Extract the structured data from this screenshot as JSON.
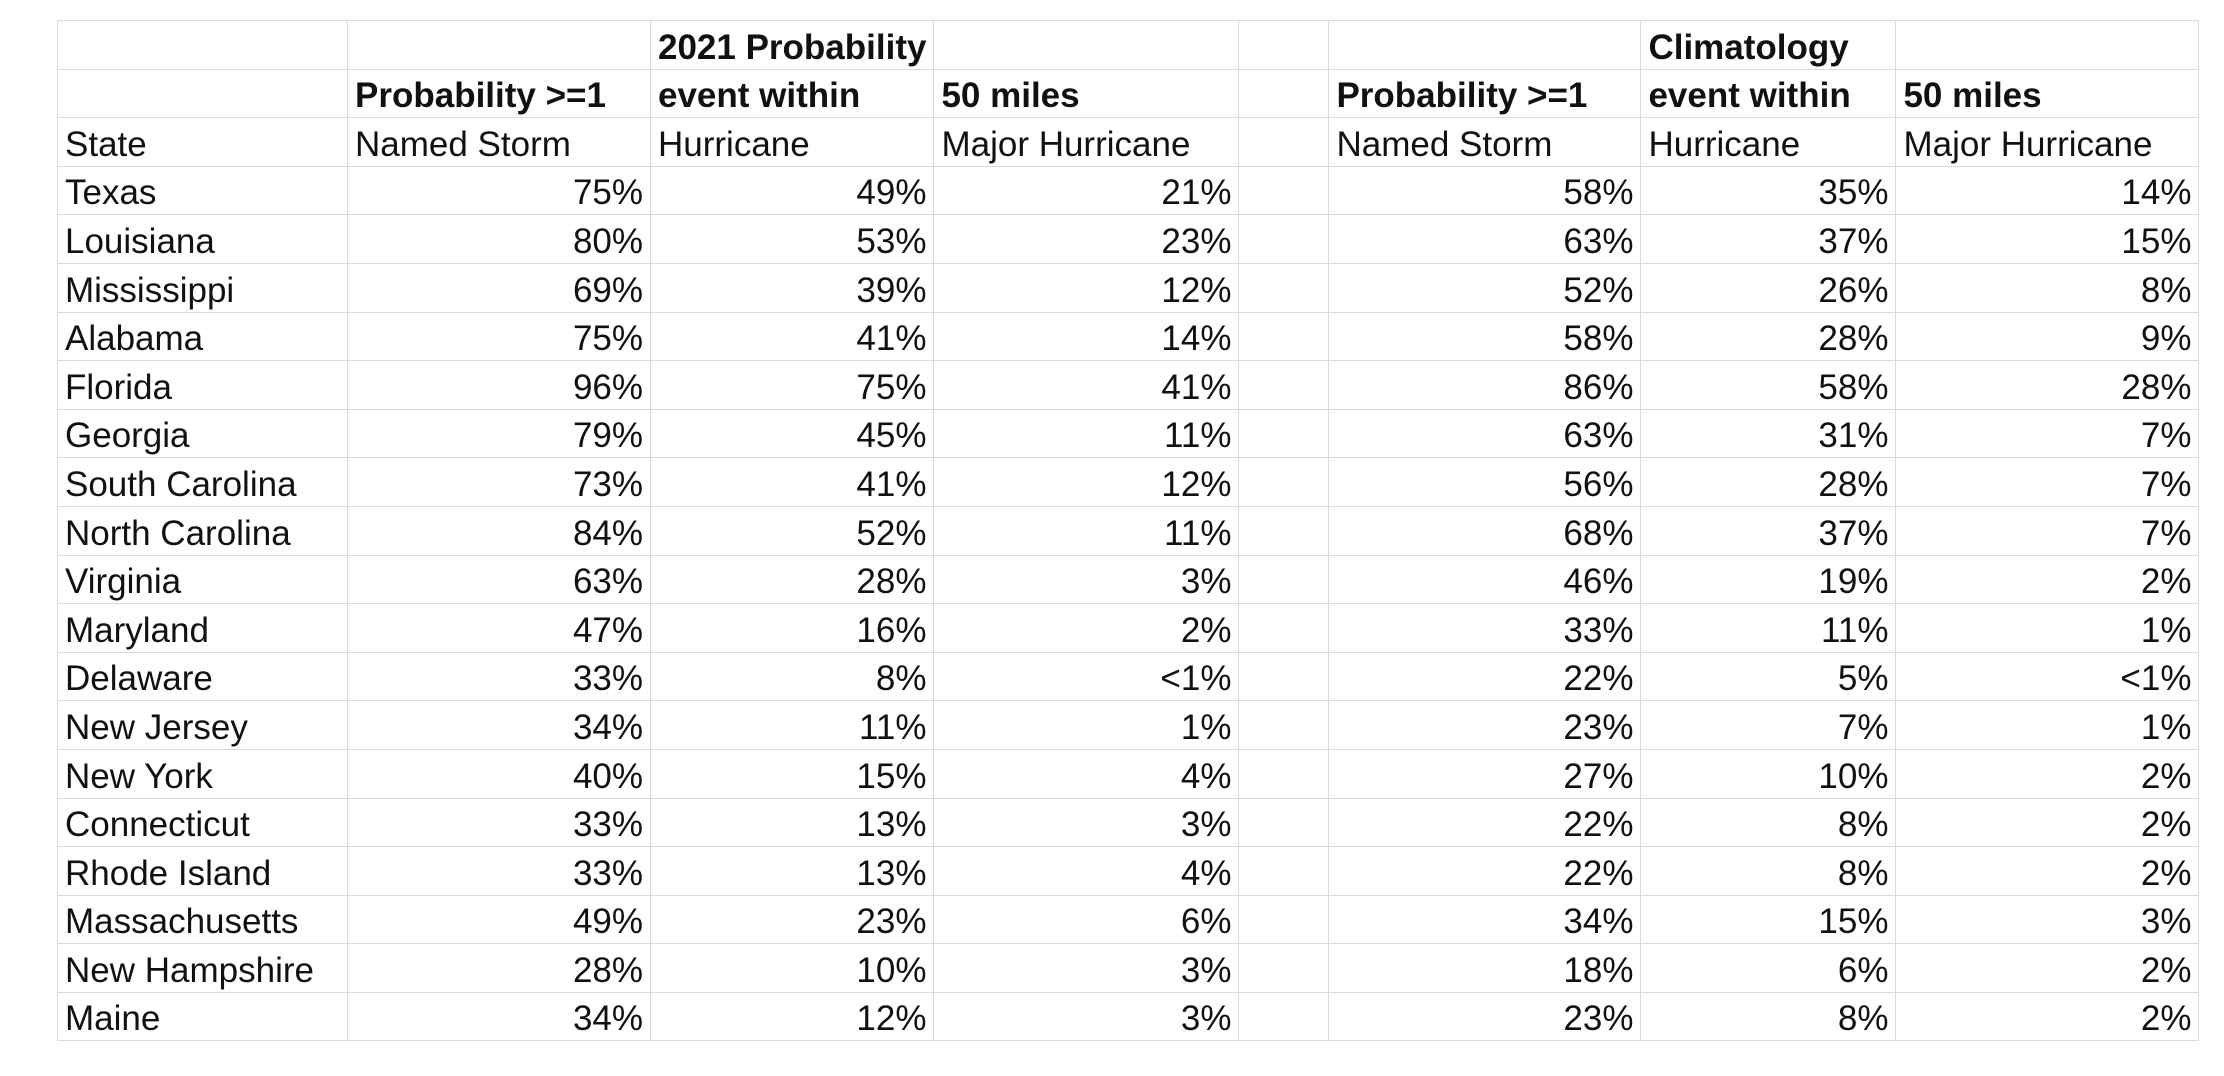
{
  "header": {
    "row1": [
      "",
      "",
      "2021 Probability",
      "",
      "",
      "",
      "Climatology",
      ""
    ],
    "row2": [
      "",
      "Probability >=1",
      "event within",
      "50 miles",
      "",
      "Probability >=1",
      "event within",
      "50 miles"
    ],
    "row3": [
      "State",
      "Named Storm",
      "Hurricane",
      "Major Hurricane",
      "",
      "Named Storm",
      "Hurricane",
      "Major Hurricane"
    ]
  },
  "rows": [
    {
      "state": "Texas",
      "ns2021": "75%",
      "h2021": "49%",
      "mh2021": "21%",
      "nsClim": "58%",
      "hClim": "35%",
      "mhClim": "14%"
    },
    {
      "state": "Louisiana",
      "ns2021": "80%",
      "h2021": "53%",
      "mh2021": "23%",
      "nsClim": "63%",
      "hClim": "37%",
      "mhClim": "15%"
    },
    {
      "state": "Mississippi",
      "ns2021": "69%",
      "h2021": "39%",
      "mh2021": "12%",
      "nsClim": "52%",
      "hClim": "26%",
      "mhClim": "8%"
    },
    {
      "state": "Alabama",
      "ns2021": "75%",
      "h2021": "41%",
      "mh2021": "14%",
      "nsClim": "58%",
      "hClim": "28%",
      "mhClim": "9%"
    },
    {
      "state": "Florida",
      "ns2021": "96%",
      "h2021": "75%",
      "mh2021": "41%",
      "nsClim": "86%",
      "hClim": "58%",
      "mhClim": "28%"
    },
    {
      "state": "Georgia",
      "ns2021": "79%",
      "h2021": "45%",
      "mh2021": "11%",
      "nsClim": "63%",
      "hClim": "31%",
      "mhClim": "7%"
    },
    {
      "state": "South Carolina",
      "ns2021": "73%",
      "h2021": "41%",
      "mh2021": "12%",
      "nsClim": "56%",
      "hClim": "28%",
      "mhClim": "7%"
    },
    {
      "state": "North Carolina",
      "ns2021": "84%",
      "h2021": "52%",
      "mh2021": "11%",
      "nsClim": "68%",
      "hClim": "37%",
      "mhClim": "7%"
    },
    {
      "state": "Virginia",
      "ns2021": "63%",
      "h2021": "28%",
      "mh2021": "3%",
      "nsClim": "46%",
      "hClim": "19%",
      "mhClim": "2%"
    },
    {
      "state": "Maryland",
      "ns2021": "47%",
      "h2021": "16%",
      "mh2021": "2%",
      "nsClim": "33%",
      "hClim": "11%",
      "mhClim": "1%"
    },
    {
      "state": "Delaware",
      "ns2021": "33%",
      "h2021": "8%",
      "mh2021": "<1%",
      "nsClim": "22%",
      "hClim": "5%",
      "mhClim": "<1%"
    },
    {
      "state": "New Jersey",
      "ns2021": "34%",
      "h2021": "11%",
      "mh2021": "1%",
      "nsClim": "23%",
      "hClim": "7%",
      "mhClim": "1%"
    },
    {
      "state": "New York",
      "ns2021": "40%",
      "h2021": "15%",
      "mh2021": "4%",
      "nsClim": "27%",
      "hClim": "10%",
      "mhClim": "2%"
    },
    {
      "state": "Connecticut",
      "ns2021": "33%",
      "h2021": "13%",
      "mh2021": "3%",
      "nsClim": "22%",
      "hClim": "8%",
      "mhClim": "2%"
    },
    {
      "state": "Rhode Island",
      "ns2021": "33%",
      "h2021": "13%",
      "mh2021": "4%",
      "nsClim": "22%",
      "hClim": "8%",
      "mhClim": "2%"
    },
    {
      "state": "Massachusetts",
      "ns2021": "49%",
      "h2021": "23%",
      "mh2021": "6%",
      "nsClim": "34%",
      "hClim": "15%",
      "mhClim": "3%"
    },
    {
      "state": "New Hampshire",
      "ns2021": "28%",
      "h2021": "10%",
      "mh2021": "3%",
      "nsClim": "18%",
      "hClim": "6%",
      "mhClim": "2%"
    },
    {
      "state": "Maine",
      "ns2021": "34%",
      "h2021": "12%",
      "mh2021": "3%",
      "nsClim": "23%",
      "hClim": "8%",
      "mhClim": "2%"
    }
  ]
}
